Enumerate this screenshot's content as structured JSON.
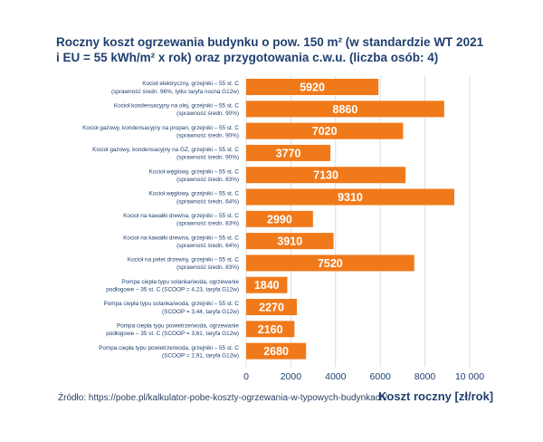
{
  "title": {
    "line1": "Roczny koszt ogrzewania budynku o pow. 150 m² (w standardzie WT 2021",
    "line2": "i EU = 55 kWh/m² x rok) oraz przygotowania c.w.u. (liczba osób: 4)"
  },
  "source": "Źródło: https://pobe.pl/kalkulator-pobe-koszty-ogrzewania-w-typowych-budynkach/",
  "colors": {
    "bar": "#f07a1a",
    "text": "#1f3f6e",
    "grid": "#cfd6e2",
    "bar_label": "#ffffff"
  },
  "chart_data": {
    "type": "bar",
    "orientation": "horizontal",
    "categories": [
      [
        "Kocioł elektryczny, grzejniki – 55 st. C",
        "(sprawność średn. 96%, tylko taryfa nocna G12w)"
      ],
      [
        "Kocioł kondensacyjny na olej, grzejniki – 55 st. C",
        "(sprawność średn. 90%)"
      ],
      [
        "Kocioł gazowy, kondensacyjny na propan, grzejniki – 55 st. C",
        "(sprawność średn. 90%)"
      ],
      [
        "Kocioł gazowy, kondensacyjny na GZ, grzejniki – 55 st. C",
        "(sprawność średn. 90%)"
      ],
      [
        "Kocioł węglowy, grzejniki – 55 st. C",
        "(sprawność średn. 83%)"
      ],
      [
        "Kocioł węglowy, grzejniki – 55 st. C",
        "(sprawność średn. 64%)"
      ],
      [
        "Kocioł na kawałki drewna, grzejniki – 55 st. C",
        "(sprawność średn. 83%)"
      ],
      [
        "Kocioł na kawałki drewna, grzejniki – 55 st. C",
        "(sprawność średn. 64%)"
      ],
      [
        "Kocioł na pelet drzewny, grzejniki – 55 st. C",
        "(sprawność średn. 83%)"
      ],
      [
        "Pompa ciepła typu solanka/woda, ogrzewanie",
        "podłogowe – 35 st. C (SCOOP = 4,23, taryfa G12w)"
      ],
      [
        "Pompa ciepła typu solanka/woda, grzejniki – 55 st. C",
        "(SCOOP = 3,44, taryfa G12w)"
      ],
      [
        "Pompa ciepła typu powietrze/woda, ogrzewanie",
        "podłogowe – 35 st. C (SCOOP = 3,61, taryfa G12w)"
      ],
      [
        "Pompa ciepła typu powietrze/woda, grzejniki – 55 st. C",
        "(SCOOP = 2,91, taryfa G12w)"
      ]
    ],
    "values": [
      5920,
      8860,
      7020,
      3770,
      7130,
      9310,
      2990,
      3910,
      7520,
      1840,
      2270,
      2160,
      2680
    ],
    "value_labels": [
      "5920",
      "8860",
      "7020",
      "3770",
      "7130",
      "9310",
      "2990",
      "3910",
      "7520",
      "1840",
      "2270",
      "2160",
      "2680"
    ],
    "xlim": [
      0,
      10000
    ],
    "xticks": [
      0,
      2000,
      4000,
      6000,
      8000,
      10000
    ],
    "xtick_labels": [
      "0",
      "2000",
      "4000",
      "6000",
      "8000",
      "10 000"
    ],
    "xlabel": "Koszt roczny [zł/rok]",
    "grid": true,
    "legend": "none"
  }
}
